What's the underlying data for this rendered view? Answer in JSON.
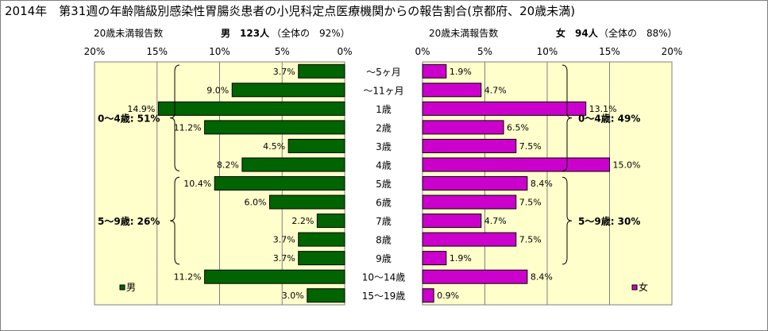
{
  "title": "2014年　第31週の年齢階級別感染性胃腸炎患者の小児科定点医療機関からの報告割合(京都府、20歳未満)",
  "male_header": {
    "left": "20歳未満報告数",
    "count": "男　123人",
    "share": "（全体の　92%）"
  },
  "female_header": {
    "left": "20歳未満報告数",
    "count": "女　94人",
    "share": "（全体の　88%）"
  },
  "chart_data": {
    "type": "bar",
    "orientation": "horizontal-population-pyramid",
    "categories": [
      "～5ヶ月",
      "～11ヶ月",
      "1歳",
      "2歳",
      "3歳",
      "4歳",
      "5歳",
      "6歳",
      "7歳",
      "8歳",
      "9歳",
      "10～14歳",
      "15～19歳"
    ],
    "series": [
      {
        "name": "男",
        "color": "#006400",
        "side": "left",
        "values": [
          3.7,
          9.0,
          14.9,
          11.2,
          4.5,
          8.2,
          10.4,
          6.0,
          2.2,
          3.7,
          3.7,
          11.2,
          3.0
        ],
        "labels": [
          "3.7%",
          "9.0%",
          "14.9%",
          "11.2%",
          "4.5%",
          "8.2%",
          "10.4%",
          "6.0%",
          "2.2%",
          "3.7%",
          "3.7%",
          "11.2%",
          "3.0%"
        ]
      },
      {
        "name": "女",
        "color": "#cc00cc",
        "side": "right",
        "values": [
          1.9,
          4.7,
          13.1,
          6.5,
          7.5,
          15.0,
          8.4,
          7.5,
          4.7,
          7.5,
          1.9,
          8.4,
          0.9
        ],
        "labels": [
          "1.9%",
          "4.7%",
          "13.1%",
          "6.5%",
          "7.5%",
          "15.0%",
          "8.4%",
          "7.5%",
          "4.7%",
          "7.5%",
          "1.9%",
          "8.4%",
          "0.9%"
        ]
      }
    ],
    "xlim": [
      0,
      20
    ],
    "male_ticks": [
      "20%",
      "15%",
      "10%",
      "5%",
      "0%"
    ],
    "female_ticks": [
      "0%",
      "5%",
      "10%",
      "15%",
      "20%"
    ],
    "grid": true,
    "annotations": [
      {
        "text": "0～4歳: 51%",
        "side": "male",
        "from": 0,
        "to": 5
      },
      {
        "text": "5～9歳: 26%",
        "side": "male",
        "from": 6,
        "to": 10
      },
      {
        "text": "0～4歳: 49%",
        "side": "female",
        "from": 0,
        "to": 5
      },
      {
        "text": "5～9歳: 30%",
        "side": "female",
        "from": 6,
        "to": 10
      }
    ],
    "legend": {
      "male": "男",
      "female": "女",
      "position": "bottom"
    },
    "plot_background": "#ffffcc"
  }
}
